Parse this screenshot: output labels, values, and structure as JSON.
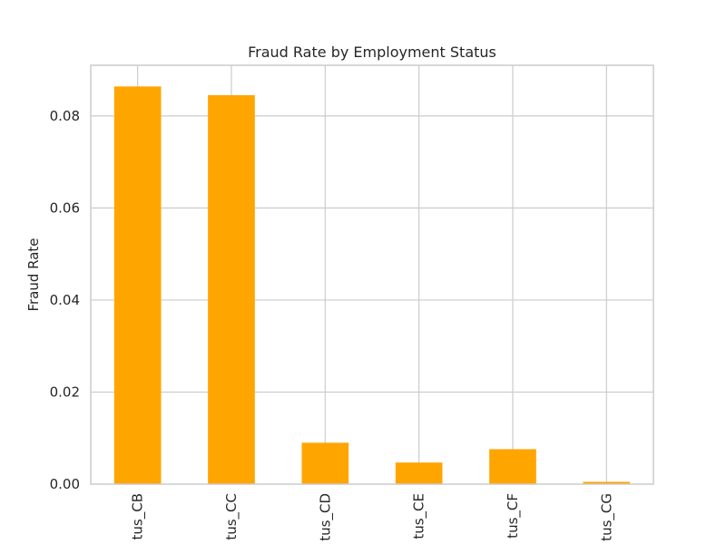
{
  "chart_data": {
    "type": "bar",
    "title": "Fraud Rate by Employment Status",
    "xlabel": "",
    "ylabel": "Fraud Rate",
    "categories": [
      "tus_CB",
      "tus_CC",
      "tus_CD",
      "tus_CE",
      "tus_CF",
      "tus_CG"
    ],
    "values": [
      0.0864,
      0.0845,
      0.009,
      0.0047,
      0.0076,
      0.0005
    ],
    "ylim": [
      0,
      0.091
    ],
    "yticks": [
      0.0,
      0.02,
      0.04,
      0.06,
      0.08
    ],
    "ytick_labels": [
      "0.00",
      "0.02",
      "0.04",
      "0.06",
      "0.08"
    ],
    "grid": true,
    "bar_color": "#ffa500",
    "grid_color": "#cccccc",
    "axis_color": "#cccccc"
  }
}
